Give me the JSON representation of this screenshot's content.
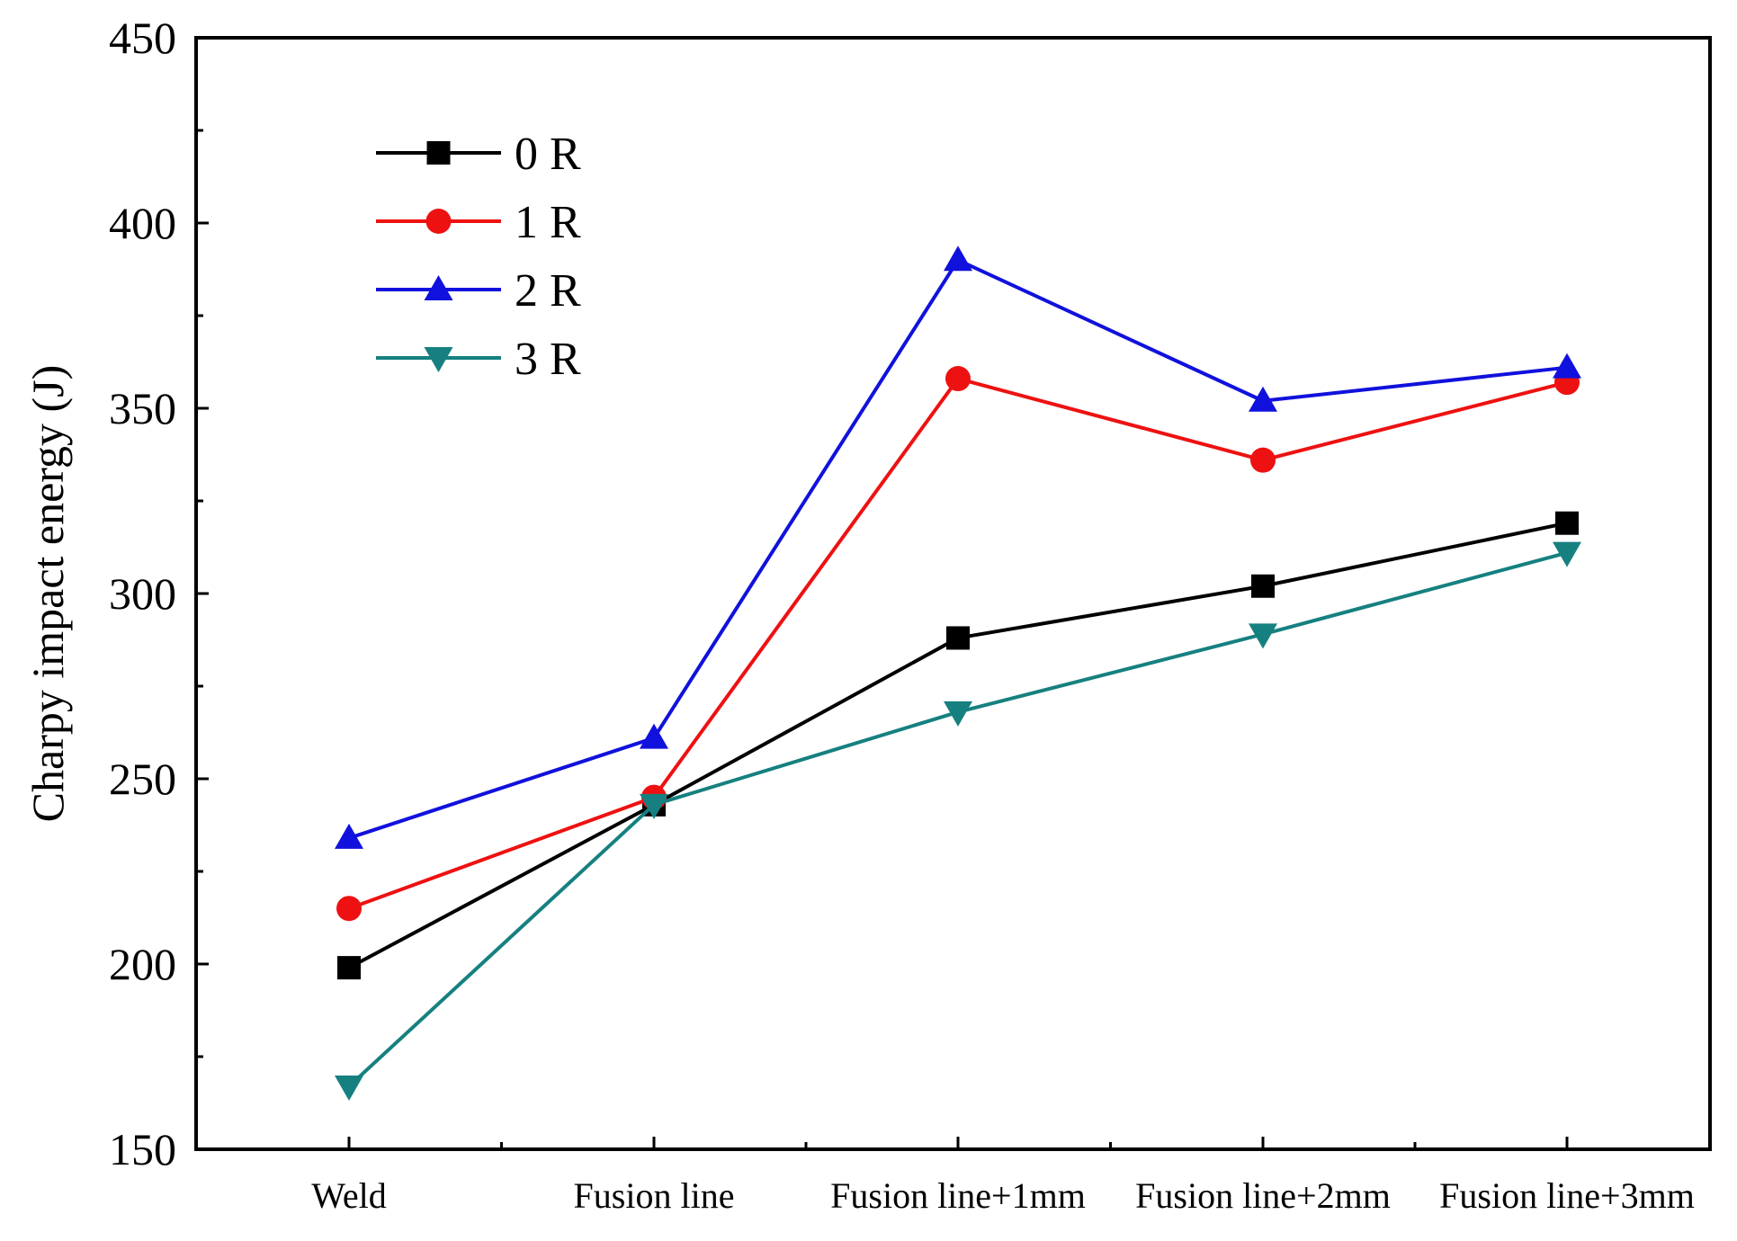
{
  "chart_data": {
    "type": "line",
    "title": "",
    "xlabel": "",
    "ylabel": "Charpy impact energy (J)",
    "ylim": [
      150,
      450
    ],
    "yticks": [
      150,
      200,
      250,
      300,
      350,
      400,
      450
    ],
    "grid": false,
    "legend_position": "top-left",
    "categories": [
      "Weld",
      "Fusion line",
      "Fusion line+1mm",
      "Fusion line+2mm",
      "Fusion line+3mm"
    ],
    "series": [
      {
        "name": "0 R",
        "color": "#000000",
        "marker": "square",
        "values": [
          199,
          243,
          288,
          302,
          319
        ]
      },
      {
        "name": "1 R",
        "color": "#ee1111",
        "marker": "circle",
        "values": [
          215,
          245,
          358,
          336,
          357
        ]
      },
      {
        "name": "2 R",
        "color": "#1111dd",
        "marker": "triangle-up",
        "values": [
          234,
          261,
          390,
          352,
          361
        ]
      },
      {
        "name": "3 R",
        "color": "#168080",
        "marker": "triangle-down",
        "values": [
          167,
          243,
          268,
          289,
          311
        ]
      }
    ]
  }
}
